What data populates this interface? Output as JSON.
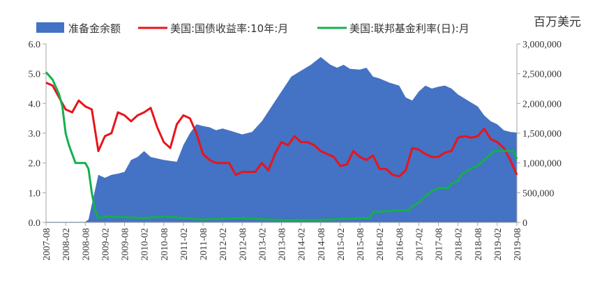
{
  "chart_data": {
    "type": "area+line",
    "unit_label": "百万美元",
    "legend": [
      {
        "key": "reserve",
        "label": "准备金余额",
        "color": "#4472C4",
        "style": "area"
      },
      {
        "key": "t10",
        "label": "美国:国债收益率:10年:月",
        "color": "#E8141B",
        "style": "line"
      },
      {
        "key": "ffr",
        "label": "美国:联邦基金利率(日):月",
        "color": "#14B04C",
        "style": "line"
      }
    ],
    "x_categories": [
      "2007-08",
      "2008-02",
      "2008-08",
      "2009-02",
      "2009-08",
      "2010-02",
      "2010-08",
      "2011-02",
      "2011-08",
      "2012-02",
      "2012-08",
      "2013-02",
      "2013-08",
      "2014-02",
      "2014-08",
      "2015-02",
      "2015-08",
      "2016-02",
      "2016-08",
      "2017-02",
      "2017-08",
      "2018-02",
      "2018-08",
      "2019-02",
      "2019-08"
    ],
    "x_start": "2007-08",
    "x_end": "2019-08",
    "left_axis": {
      "min": 0,
      "max": 6,
      "ticks": [
        "0.0",
        "1.0",
        "2.0",
        "3.0",
        "4.0",
        "5.0",
        "6.0"
      ]
    },
    "right_axis": {
      "min": 0,
      "max": 3000000,
      "ticks": [
        "0",
        "500,000",
        "1,000,000",
        "1,500,000",
        "2,000,000",
        "2,500,000",
        "3,000,000"
      ]
    },
    "series": [
      {
        "name": "准备金余额",
        "axis": "right",
        "points": [
          [
            "2007-08",
            10000
          ],
          [
            "2008-08",
            10000
          ],
          [
            "2008-09",
            50000
          ],
          [
            "2008-10",
            300000
          ],
          [
            "2008-11",
            550000
          ],
          [
            "2008-12",
            800000
          ],
          [
            "2009-02",
            750000
          ],
          [
            "2009-04",
            800000
          ],
          [
            "2009-06",
            820000
          ],
          [
            "2009-08",
            850000
          ],
          [
            "2009-10",
            1050000
          ],
          [
            "2009-12",
            1100000
          ],
          [
            "2010-02",
            1200000
          ],
          [
            "2010-04",
            1100000
          ],
          [
            "2010-08",
            1050000
          ],
          [
            "2010-12",
            1020000
          ],
          [
            "2011-02",
            1300000
          ],
          [
            "2011-04",
            1500000
          ],
          [
            "2011-06",
            1650000
          ],
          [
            "2011-08",
            1620000
          ],
          [
            "2011-10",
            1600000
          ],
          [
            "2011-12",
            1550000
          ],
          [
            "2012-02",
            1580000
          ],
          [
            "2012-05",
            1530000
          ],
          [
            "2012-08",
            1480000
          ],
          [
            "2012-11",
            1520000
          ],
          [
            "2013-02",
            1700000
          ],
          [
            "2013-05",
            1950000
          ],
          [
            "2013-08",
            2200000
          ],
          [
            "2013-11",
            2450000
          ],
          [
            "2014-02",
            2550000
          ],
          [
            "2014-05",
            2650000
          ],
          [
            "2014-08",
            2780000
          ],
          [
            "2014-11",
            2650000
          ],
          [
            "2015-01",
            2600000
          ],
          [
            "2015-03",
            2650000
          ],
          [
            "2015-05",
            2580000
          ],
          [
            "2015-08",
            2570000
          ],
          [
            "2015-10",
            2600000
          ],
          [
            "2015-12",
            2450000
          ],
          [
            "2016-02",
            2420000
          ],
          [
            "2016-05",
            2350000
          ],
          [
            "2016-08",
            2300000
          ],
          [
            "2016-10",
            2100000
          ],
          [
            "2016-12",
            2050000
          ],
          [
            "2017-02",
            2200000
          ],
          [
            "2017-04",
            2300000
          ],
          [
            "2017-06",
            2250000
          ],
          [
            "2017-08",
            2280000
          ],
          [
            "2017-10",
            2300000
          ],
          [
            "2017-12",
            2250000
          ],
          [
            "2018-02",
            2150000
          ],
          [
            "2018-05",
            2050000
          ],
          [
            "2018-08",
            1950000
          ],
          [
            "2018-10",
            1800000
          ],
          [
            "2018-12",
            1700000
          ],
          [
            "2019-02",
            1650000
          ],
          [
            "2019-04",
            1550000
          ],
          [
            "2019-06",
            1520000
          ],
          [
            "2019-08",
            1510000
          ]
        ]
      },
      {
        "name": "美国:国债收益率:10年:月",
        "axis": "left",
        "points": [
          [
            "2007-08",
            4.7
          ],
          [
            "2007-10",
            4.6
          ],
          [
            "2007-12",
            4.2
          ],
          [
            "2008-02",
            3.8
          ],
          [
            "2008-04",
            3.7
          ],
          [
            "2008-06",
            4.1
          ],
          [
            "2008-08",
            3.9
          ],
          [
            "2008-10",
            3.8
          ],
          [
            "2008-12",
            2.4
          ],
          [
            "2009-02",
            2.9
          ],
          [
            "2009-04",
            3.0
          ],
          [
            "2009-06",
            3.7
          ],
          [
            "2009-08",
            3.6
          ],
          [
            "2009-10",
            3.4
          ],
          [
            "2009-12",
            3.6
          ],
          [
            "2010-02",
            3.7
          ],
          [
            "2010-04",
            3.85
          ],
          [
            "2010-06",
            3.2
          ],
          [
            "2010-08",
            2.7
          ],
          [
            "2010-10",
            2.5
          ],
          [
            "2010-12",
            3.3
          ],
          [
            "2011-02",
            3.6
          ],
          [
            "2011-04",
            3.5
          ],
          [
            "2011-06",
            3.0
          ],
          [
            "2011-08",
            2.3
          ],
          [
            "2011-10",
            2.1
          ],
          [
            "2011-12",
            2.0
          ],
          [
            "2012-02",
            2.0
          ],
          [
            "2012-04",
            2.0
          ],
          [
            "2012-06",
            1.6
          ],
          [
            "2012-08",
            1.7
          ],
          [
            "2012-10",
            1.7
          ],
          [
            "2012-12",
            1.7
          ],
          [
            "2013-02",
            2.0
          ],
          [
            "2013-04",
            1.75
          ],
          [
            "2013-06",
            2.3
          ],
          [
            "2013-08",
            2.7
          ],
          [
            "2013-10",
            2.6
          ],
          [
            "2013-12",
            2.9
          ],
          [
            "2014-02",
            2.7
          ],
          [
            "2014-04",
            2.7
          ],
          [
            "2014-06",
            2.6
          ],
          [
            "2014-08",
            2.4
          ],
          [
            "2014-10",
            2.3
          ],
          [
            "2014-12",
            2.2
          ],
          [
            "2015-02",
            1.9
          ],
          [
            "2015-04",
            1.95
          ],
          [
            "2015-06",
            2.4
          ],
          [
            "2015-08",
            2.2
          ],
          [
            "2015-10",
            2.1
          ],
          [
            "2015-12",
            2.25
          ],
          [
            "2016-02",
            1.8
          ],
          [
            "2016-04",
            1.8
          ],
          [
            "2016-06",
            1.6
          ],
          [
            "2016-08",
            1.55
          ],
          [
            "2016-10",
            1.75
          ],
          [
            "2016-12",
            2.5
          ],
          [
            "2017-02",
            2.45
          ],
          [
            "2017-04",
            2.3
          ],
          [
            "2017-06",
            2.2
          ],
          [
            "2017-08",
            2.2
          ],
          [
            "2017-10",
            2.35
          ],
          [
            "2017-12",
            2.4
          ],
          [
            "2018-02",
            2.85
          ],
          [
            "2018-04",
            2.9
          ],
          [
            "2018-06",
            2.85
          ],
          [
            "2018-08",
            2.9
          ],
          [
            "2018-10",
            3.15
          ],
          [
            "2018-12",
            2.8
          ],
          [
            "2019-02",
            2.7
          ],
          [
            "2019-04",
            2.5
          ],
          [
            "2019-06",
            2.1
          ],
          [
            "2019-08",
            1.6
          ]
        ]
      },
      {
        "name": "美国:联邦基金利率(日):月",
        "axis": "left",
        "points": [
          [
            "2007-08",
            5.05
          ],
          [
            "2007-10",
            4.8
          ],
          [
            "2007-12",
            4.3
          ],
          [
            "2008-01",
            3.9
          ],
          [
            "2008-02",
            3.0
          ],
          [
            "2008-03",
            2.6
          ],
          [
            "2008-04",
            2.3
          ],
          [
            "2008-05",
            2.0
          ],
          [
            "2008-08",
            2.0
          ],
          [
            "2008-09",
            1.8
          ],
          [
            "2008-10",
            1.0
          ],
          [
            "2008-11",
            0.4
          ],
          [
            "2008-12",
            0.15
          ],
          [
            "2009-02",
            0.2
          ],
          [
            "2010-02",
            0.15
          ],
          [
            "2010-08",
            0.2
          ],
          [
            "2011-02",
            0.15
          ],
          [
            "2011-08",
            0.1
          ],
          [
            "2012-08",
            0.15
          ],
          [
            "2013-08",
            0.08
          ],
          [
            "2014-08",
            0.09
          ],
          [
            "2015-08",
            0.14
          ],
          [
            "2015-11",
            0.14
          ],
          [
            "2015-12",
            0.35
          ],
          [
            "2016-08",
            0.4
          ],
          [
            "2016-11",
            0.41
          ],
          [
            "2016-12",
            0.55
          ],
          [
            "2017-02",
            0.66
          ],
          [
            "2017-03",
            0.8
          ],
          [
            "2017-06",
            1.05
          ],
          [
            "2017-08",
            1.16
          ],
          [
            "2017-11",
            1.16
          ],
          [
            "2017-12",
            1.3
          ],
          [
            "2018-02",
            1.4
          ],
          [
            "2018-03",
            1.6
          ],
          [
            "2018-06",
            1.82
          ],
          [
            "2018-08",
            1.91
          ],
          [
            "2018-10",
            2.1
          ],
          [
            "2018-12",
            2.3
          ],
          [
            "2019-01",
            2.4
          ],
          [
            "2019-06",
            2.4
          ],
          [
            "2019-07",
            2.4
          ],
          [
            "2019-08",
            2.13
          ]
        ]
      }
    ]
  }
}
